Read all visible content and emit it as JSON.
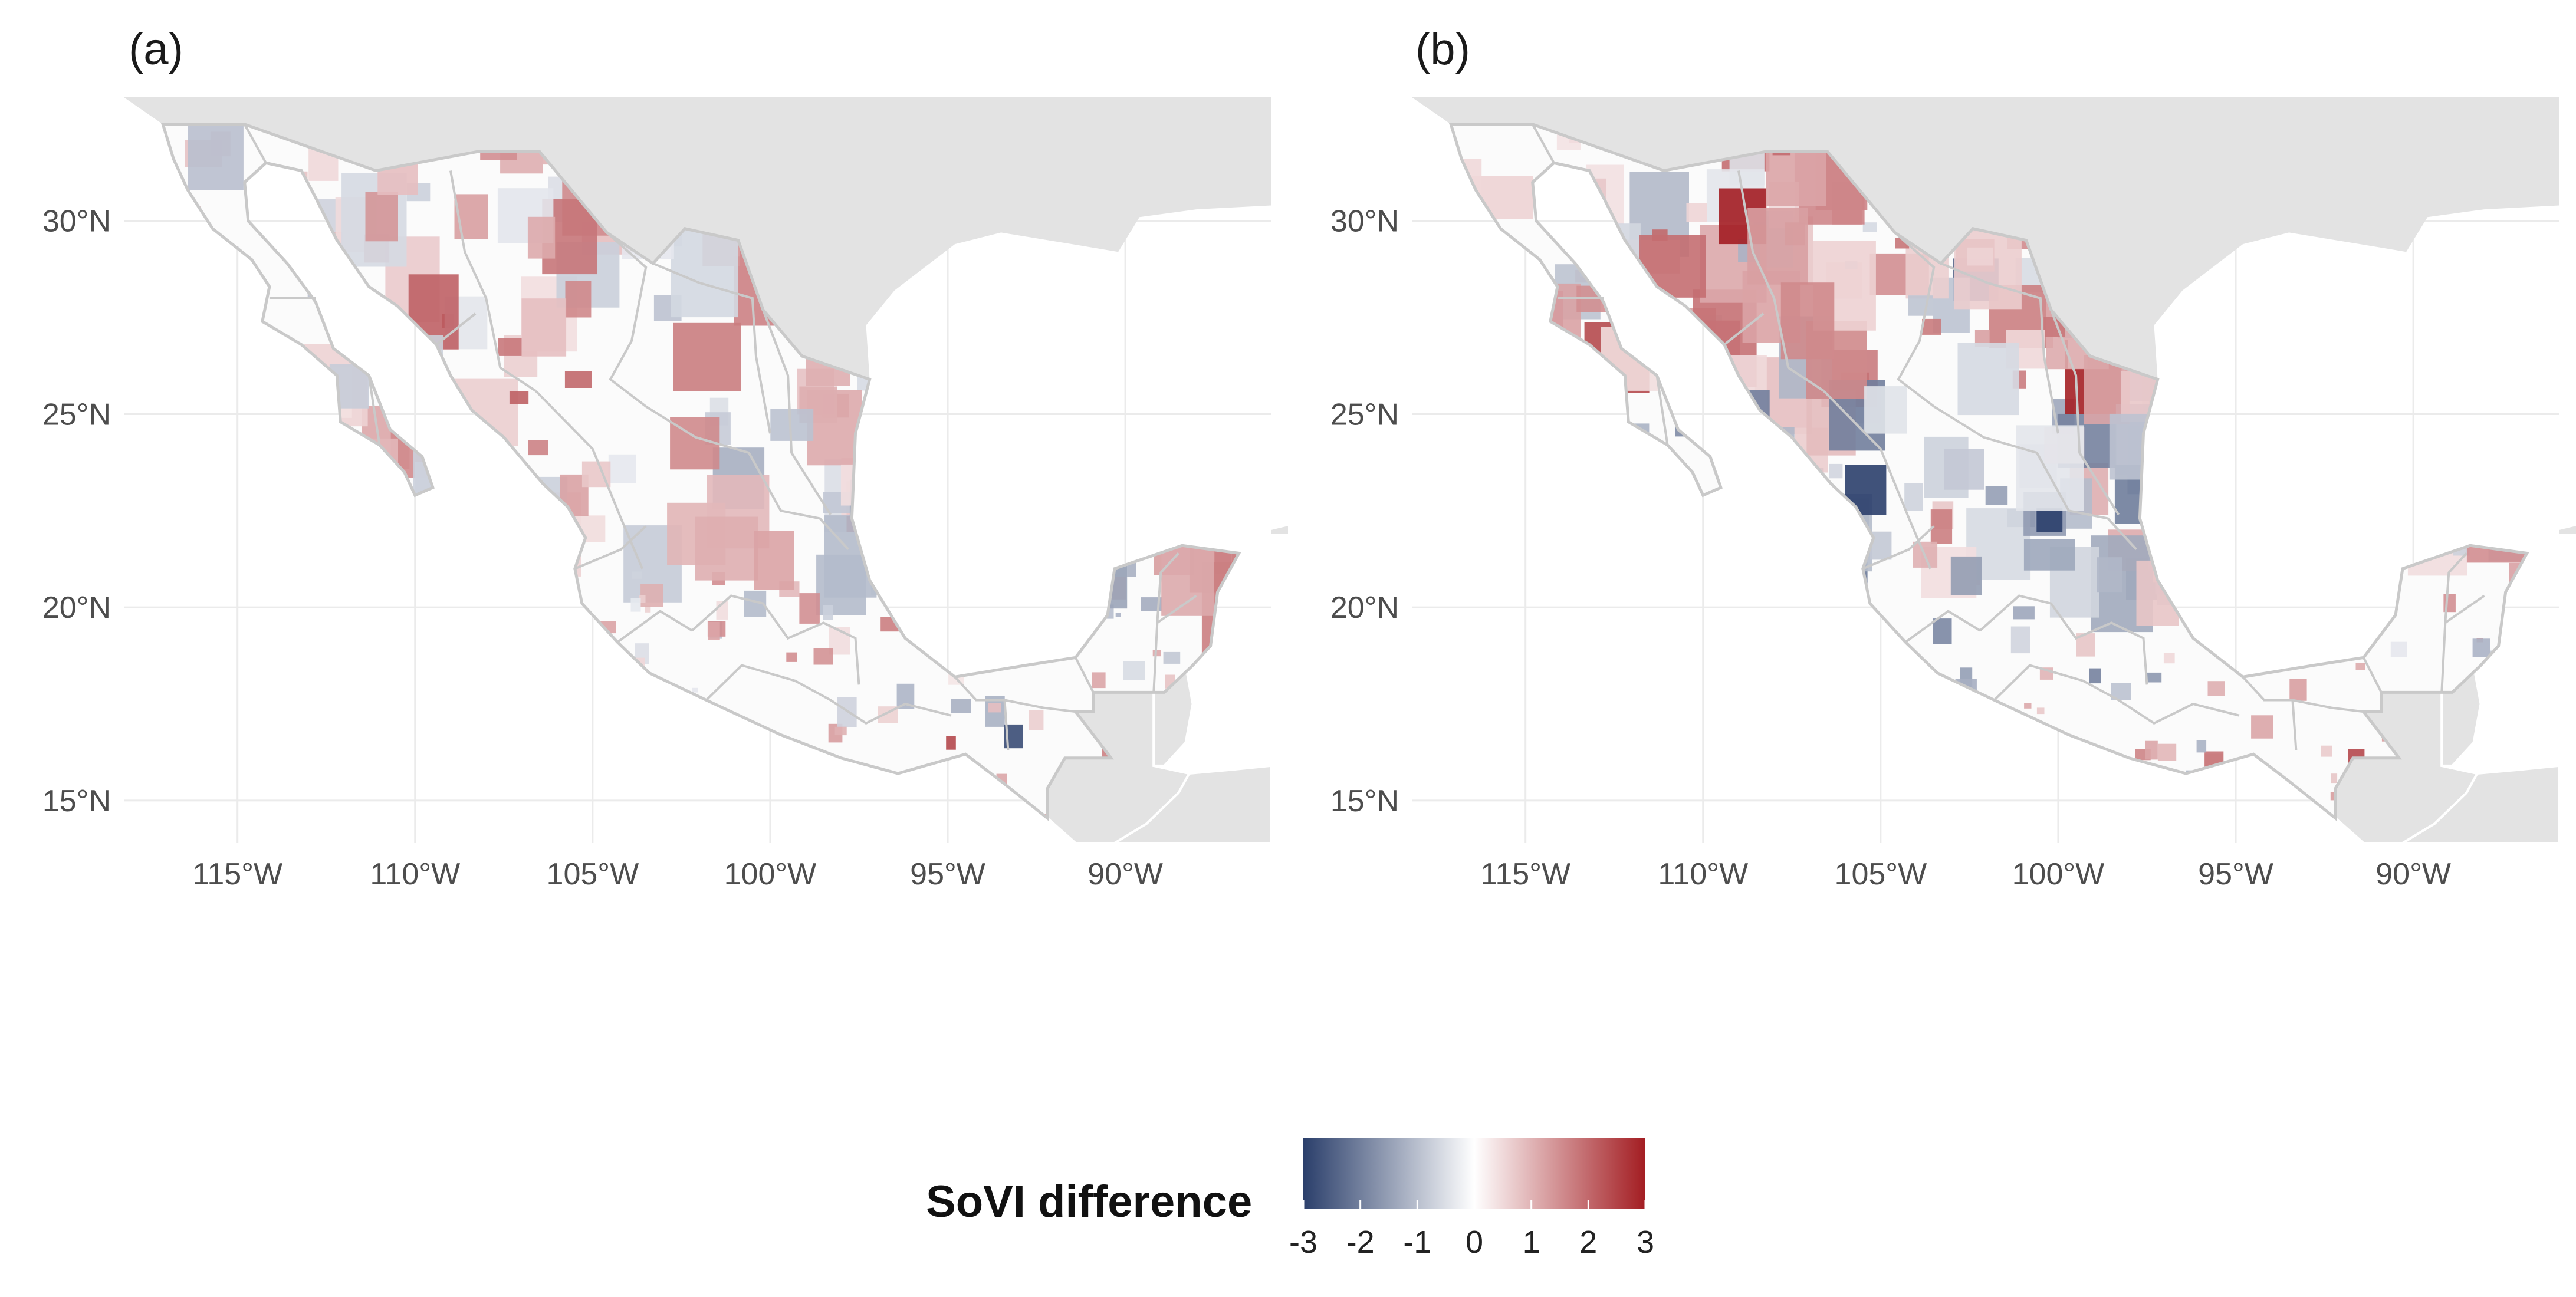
{
  "panels": [
    {
      "label": "(a)"
    },
    {
      "label": "(b)"
    }
  ],
  "axes": {
    "x_ticks": [
      "115°W",
      "110°W",
      "105°W",
      "100°W",
      "95°W",
      "90°W"
    ],
    "y_ticks": [
      "30°N",
      "25°N",
      "20°N",
      "15°N"
    ],
    "lon_range": [
      -118.2,
      -85.9
    ],
    "lat_range": [
      13.9,
      33.2
    ]
  },
  "legend": {
    "title": "SoVI difference",
    "ticks": [
      "-3",
      "-2",
      "-1",
      "0",
      "1",
      "2",
      "3"
    ],
    "range": [
      -3,
      3
    ],
    "colors": {
      "low": "#2b3f6b",
      "mid": "#ffffff",
      "high": "#a31d22"
    }
  },
  "colors": {
    "land_outside": "#e3e3e3",
    "mexico_fill": "#fbfbfb",
    "border": "#c9c9c9",
    "grid": "#ebebeb"
  }
}
